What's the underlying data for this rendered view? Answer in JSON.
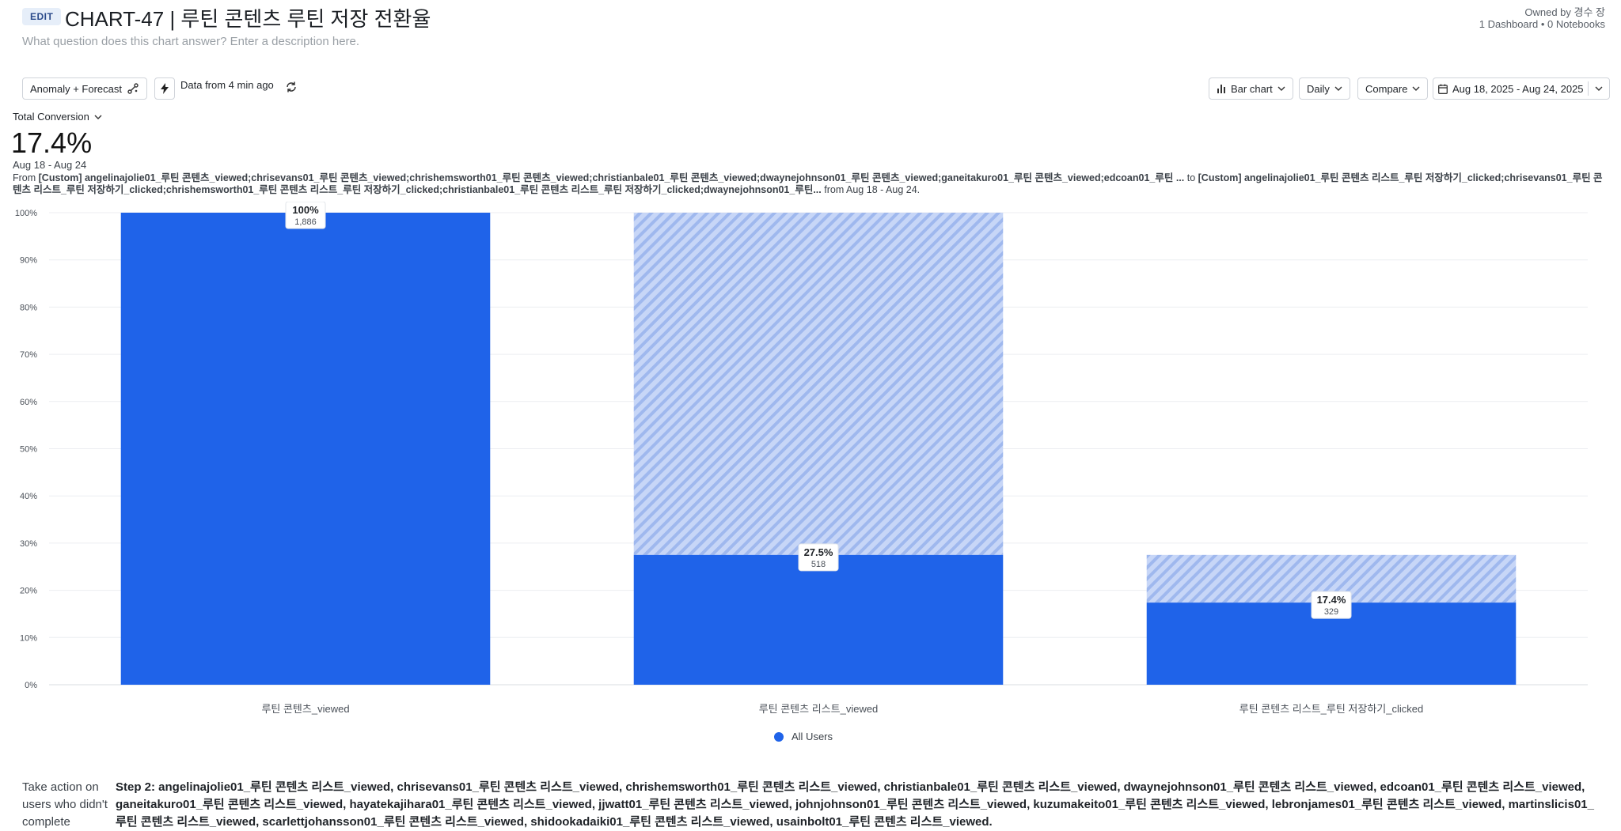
{
  "header": {
    "edit_label": "EDIT",
    "title": "CHART-47 | 루틴 콘텐츠 루틴 저장 전환율",
    "description_placeholder": "What question does this chart answer? Enter a description here.",
    "owner": "Owned by 경수 장",
    "meta": "1 Dashboard • 0 Notebooks"
  },
  "toolbar": {
    "anomaly_label": "Anomaly + Forecast",
    "data_freshness": "Data from 4 min ago",
    "chart_type_label": "Bar chart",
    "interval_label": "Daily",
    "compare_label": "Compare",
    "date_range_label": "Aug 18, 2025 - Aug 24, 2025"
  },
  "metric": {
    "selector_label": "Total Conversion",
    "value": "17.4%",
    "range": "Aug 18 - Aug 24",
    "from_prefix": "From ",
    "from_text": "[Custom] angelinajolie01_루틴 콘텐츠_viewed;chrisevans01_루틴 콘텐츠_viewed;chrishemsworth01_루틴 콘텐츠_viewed;christianbale01_루틴 콘텐츠_viewed;dwaynejohnson01_루틴 콘텐츠_viewed;ganeitakuro01_루틴 콘텐츠_viewed;edcoan01_루틴 ...",
    "to_prefix": " to ",
    "to_text": "[Custom] angelinajolie01_루틴 콘텐츠 리스트_루틴 저장하기_clicked;chrisevans01_루틴 콘텐츠 리스트_루틴 저장하기_clicked;chrishemsworth01_루틴 콘텐츠 리스트_루틴 저장하기_clicked;christianbale01_루틴 콘텐츠 리스트_루틴 저장하기_clicked;dwaynejohnson01_루틴...",
    "range_suffix": " from Aug 18 - Aug 24."
  },
  "chart_data": {
    "type": "bar",
    "categories": [
      "루틴 콘텐츠_viewed",
      "루틴 콘텐츠 리스트_viewed",
      "루틴 콘텐츠 리스트_루틴 저장하기_clicked"
    ],
    "series": [
      {
        "name": "All Users",
        "values": [
          100,
          27.5,
          17.4
        ],
        "counts": [
          1886,
          518,
          329
        ],
        "labels": [
          "100%",
          "27.5%",
          "17.4%"
        ],
        "count_labels": [
          "1,886",
          "518",
          "329"
        ]
      }
    ],
    "dropoff_from": [
      100,
      100,
      27.5
    ],
    "ylim": [
      0,
      100
    ],
    "yticks": [
      0,
      10,
      20,
      30,
      40,
      50,
      60,
      70,
      80,
      90,
      100
    ],
    "ytick_labels": [
      "0%",
      "10%",
      "20%",
      "30%",
      "40%",
      "50%",
      "60%",
      "70%",
      "80%",
      "90%",
      "100%"
    ],
    "grid": true,
    "legend": "bottom-center",
    "colors": {
      "bar": "#1f63e9",
      "dropoff": "#c7d6f7",
      "dropoff_stripe": "#9fb8ee"
    }
  },
  "legend": {
    "label": "All Users"
  },
  "footer": {
    "take_action": "Take action on users who didn't complete",
    "step_text": "Step 2: angelinajolie01_루틴 콘텐츠 리스트_viewed, chrisevans01_루틴 콘텐츠 리스트_viewed, chrishemsworth01_루틴 콘텐츠 리스트_viewed, christianbale01_루틴 콘텐츠 리스트_viewed, dwaynejohnson01_루틴 콘텐츠 리스트_viewed, edcoan01_루틴 콘텐츠 리스트_viewed, ganeitakuro01_루틴 콘텐츠 리스트_viewed, hayatekajihara01_루틴 콘텐츠 리스트_viewed, jjwatt01_루틴 콘텐츠 리스트_viewed, johnjohnson01_루틴 콘텐츠 리스트_viewed, kuzumakeito01_루틴 콘텐츠 리스트_viewed, lebronjames01_루틴 콘텐츠 리스트_viewed, martinslicis01_루틴 콘텐츠 리스트_viewed, scarlettjohansson01_루틴 콘텐츠 리스트_viewed, shidookadaiki01_루틴 콘텐츠 리스트_viewed, usainbolt01_루틴 콘텐츠 리스트_viewed."
  }
}
